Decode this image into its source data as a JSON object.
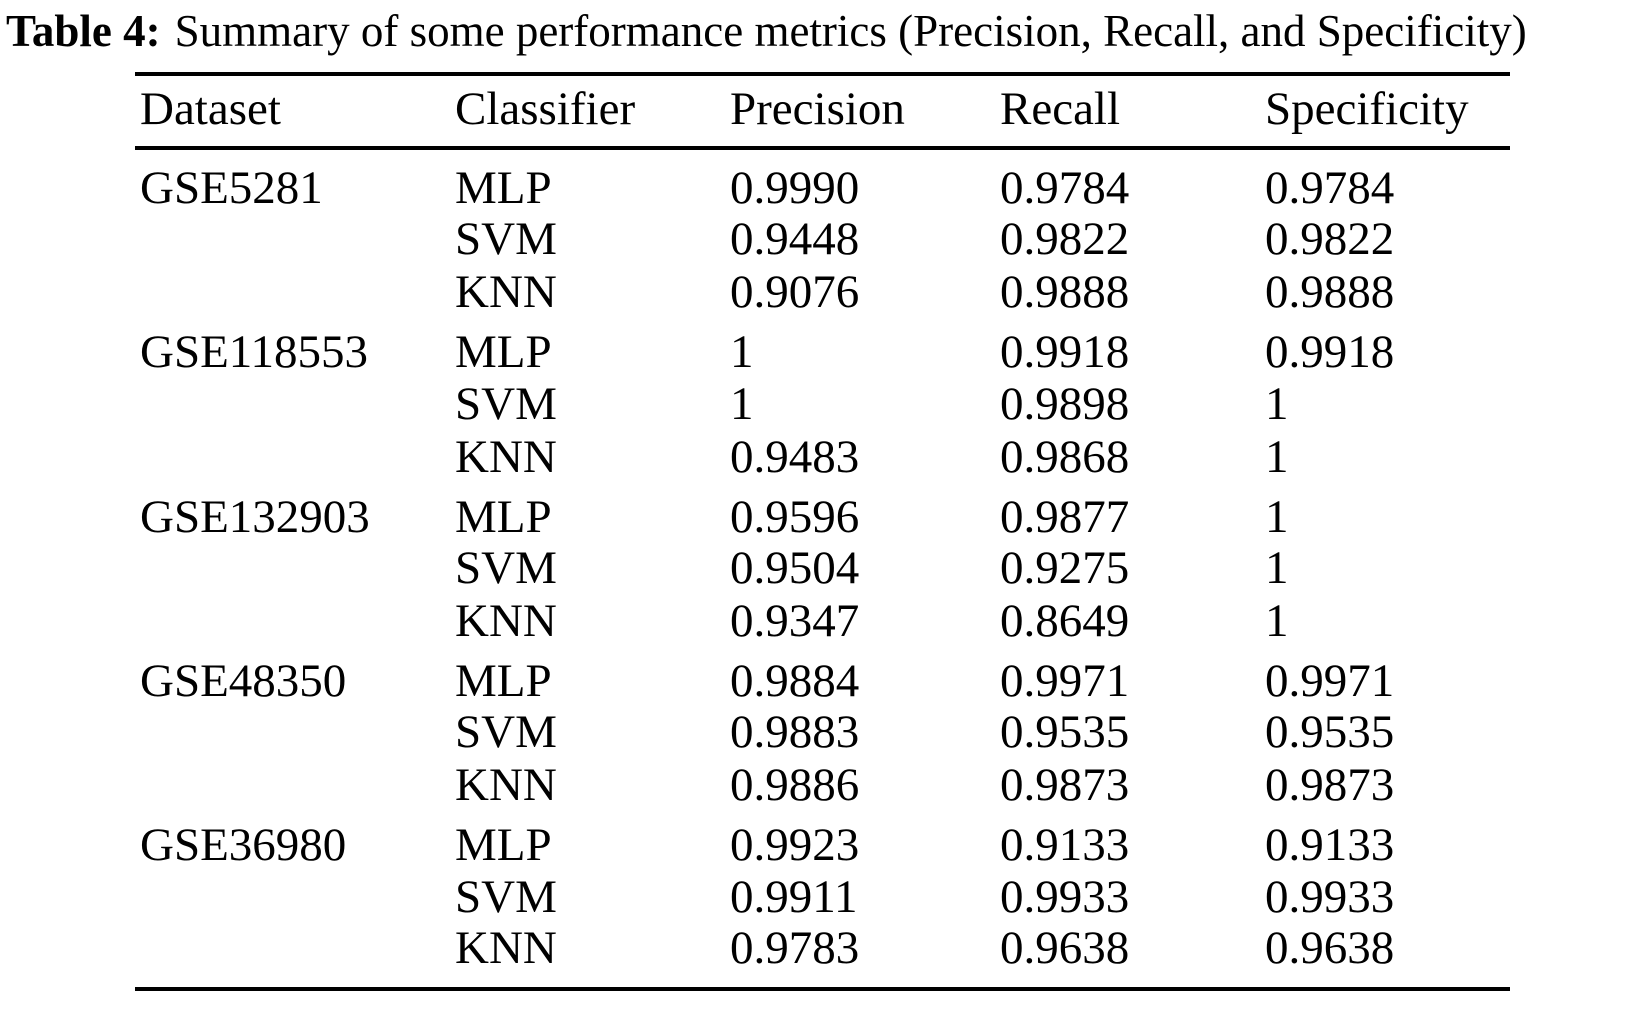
{
  "title": {
    "label": "Table 4:",
    "text": "Summary of some performance metrics (Precision, Recall, and Specificity)"
  },
  "table": {
    "headers": [
      "Dataset",
      "Classifier",
      "Precision",
      "Recall",
      "Specificity"
    ],
    "rows": [
      {
        "dataset": "GSE5281",
        "classifier": "MLP",
        "precision": "0.9990",
        "recall": "0.9784",
        "specificity": "0.9784"
      },
      {
        "dataset": "",
        "classifier": "SVM",
        "precision": "0.9448",
        "recall": "0.9822",
        "specificity": "0.9822"
      },
      {
        "dataset": "",
        "classifier": "KNN",
        "precision": "0.9076",
        "recall": "0.9888",
        "specificity": "0.9888"
      },
      {
        "dataset": "GSE118553",
        "classifier": "MLP",
        "precision": "1",
        "recall": "0.9918",
        "specificity": "0.9918"
      },
      {
        "dataset": "",
        "classifier": "SVM",
        "precision": "1",
        "recall": "0.9898",
        "specificity": "1"
      },
      {
        "dataset": "",
        "classifier": "KNN",
        "precision": "0.9483",
        "recall": "0.9868",
        "specificity": "1"
      },
      {
        "dataset": "GSE132903",
        "classifier": "MLP",
        "precision": "0.9596",
        "recall": "0.9877",
        "specificity": "1"
      },
      {
        "dataset": "",
        "classifier": "SVM",
        "precision": "0.9504",
        "recall": "0.9275",
        "specificity": "1"
      },
      {
        "dataset": "",
        "classifier": "KNN",
        "precision": "0.9347",
        "recall": "0.8649",
        "specificity": "1"
      },
      {
        "dataset": "GSE48350",
        "classifier": "MLP",
        "precision": "0.9884",
        "recall": "0.9971",
        "specificity": "0.9971"
      },
      {
        "dataset": "",
        "classifier": "SVM",
        "precision": "0.9883",
        "recall": "0.9535",
        "specificity": "0.9535"
      },
      {
        "dataset": "",
        "classifier": "KNN",
        "precision": "0.9886",
        "recall": "0.9873",
        "specificity": "0.9873"
      },
      {
        "dataset": "GSE36980",
        "classifier": "MLP",
        "precision": "0.9923",
        "recall": "0.9133",
        "specificity": "0.9133"
      },
      {
        "dataset": "",
        "classifier": "SVM",
        "precision": "0.9911",
        "recall": "0.9933",
        "specificity": "0.9933"
      },
      {
        "dataset": "",
        "classifier": "KNN",
        "precision": "0.9783",
        "recall": "0.9638",
        "specificity": "0.9638"
      }
    ]
  }
}
